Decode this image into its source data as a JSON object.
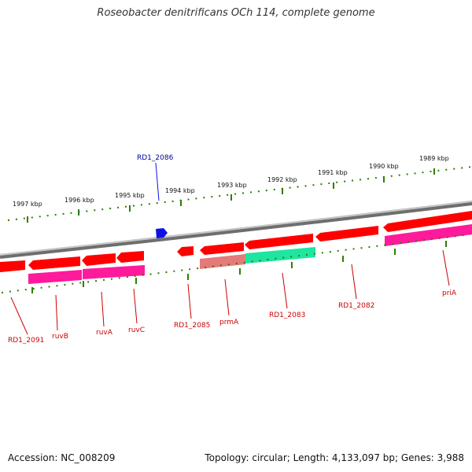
{
  "title": "Roseobacter denitrificans OCh 114, complete genome",
  "footer": {
    "accession": "Accession: NC_008209",
    "stats": "Topology: circular; Length: 4,133,097 bp; Genes: 3,988"
  },
  "colors": {
    "gene_red": "#ff0000",
    "gene_magenta": "#ff1a9c",
    "gene_green": "#1ee6a0",
    "gene_salmon": "#e47a7a",
    "marker_blue": "#1010e8",
    "label_red": "#cc0000",
    "label_blue": "#000099",
    "tick_green": "#2e7d00",
    "backbone_gray": "#8a8a8a"
  },
  "scale_labels": [
    "1997 kbp",
    "1996 kbp",
    "1995 kbp",
    "1994 kbp",
    "1993 kbp",
    "1992 kbp",
    "1991 kbp",
    "1990 kbp",
    "1989 kbp"
  ],
  "gene_labels": [
    "RD1_2091",
    "ruvB",
    "ruvA",
    "ruvC",
    "RD1_2085",
    "prmA",
    "RD1_2083",
    "RD1_2082",
    "priA"
  ],
  "marker_label": "RD1_2086"
}
